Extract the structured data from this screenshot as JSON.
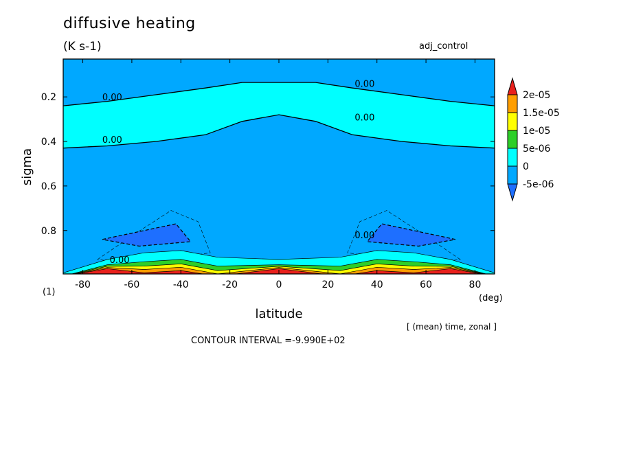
{
  "chart_data": {
    "type": "contour",
    "title": "diffusive heating",
    "units": "(K s-1)",
    "run_name": "adj_control",
    "xlabel": "latitude",
    "xunit": "(deg)",
    "ylabel": "sigma",
    "level_label": "(1)",
    "xlim": [
      -88,
      88
    ],
    "ylim": [
      0.995,
      0.03
    ],
    "x_ticks": [
      -80,
      -60,
      -40,
      -20,
      0,
      20,
      40,
      60,
      80
    ],
    "y_ticks": [
      0.2,
      0.4,
      0.6,
      0.8
    ],
    "colorbar": {
      "labels": [
        "2e-05",
        "1.5e-05",
        "1e-05",
        "5e-06",
        "0",
        "-5e-06"
      ],
      "bins": [
        {
          "range": "> 2e-05",
          "color": "#e8201c"
        },
        {
          "range": "1.5e-05 to 2e-05",
          "color": "#ff9e00"
        },
        {
          "range": "1e-05 to 1.5e-05",
          "color": "#ffff00"
        },
        {
          "range": "5e-06 to 1e-05",
          "color": "#2dcf28"
        },
        {
          "range": "0 to 5e-06",
          "color": "#00ffff"
        },
        {
          "range": "-5e-06 to 0",
          "color": "#00a8ff"
        },
        {
          "range": "< -5e-06",
          "color": "#1e6fff"
        }
      ]
    },
    "contour_labels": [
      "0.00",
      "0.00",
      "0.00",
      "0.00",
      "0.00",
      "0.00"
    ],
    "footer": "[ (mean) time, zonal ]",
    "contour_interval": "CONTOUR INTERVAL =-9.990E+02",
    "upper_zero_contour": {
      "lat": [
        -88,
        -70,
        -50,
        -30,
        -15,
        0,
        15,
        30,
        50,
        70,
        88
      ],
      "sigma": [
        0.24,
        0.22,
        0.19,
        0.16,
        0.135,
        0.135,
        0.135,
        0.16,
        0.19,
        0.22,
        0.24
      ]
    },
    "lower_zero_contour": {
      "lat": [
        -88,
        -70,
        -50,
        -30,
        -15,
        0,
        15,
        30,
        50,
        70,
        88
      ],
      "sigma": [
        0.43,
        0.42,
        0.4,
        0.37,
        0.31,
        0.28,
        0.31,
        0.37,
        0.4,
        0.42,
        0.43
      ]
    },
    "negative_cores": [
      {
        "lat": [
          -72,
          -42,
          -36,
          -57
        ],
        "sigma": [
          0.84,
          0.77,
          0.85,
          0.87
        ]
      },
      {
        "lat": [
          72,
          42,
          36,
          57
        ],
        "sigma": [
          0.84,
          0.77,
          0.85,
          0.87
        ]
      }
    ],
    "positive_near_surface": {
      "lat": [
        -88,
        -70,
        -55,
        -40,
        -25,
        0,
        25,
        40,
        55,
        70,
        88
      ],
      "sigma": [
        0.99,
        0.93,
        0.9,
        0.89,
        0.92,
        0.93,
        0.92,
        0.89,
        0.9,
        0.93,
        0.99
      ]
    }
  }
}
